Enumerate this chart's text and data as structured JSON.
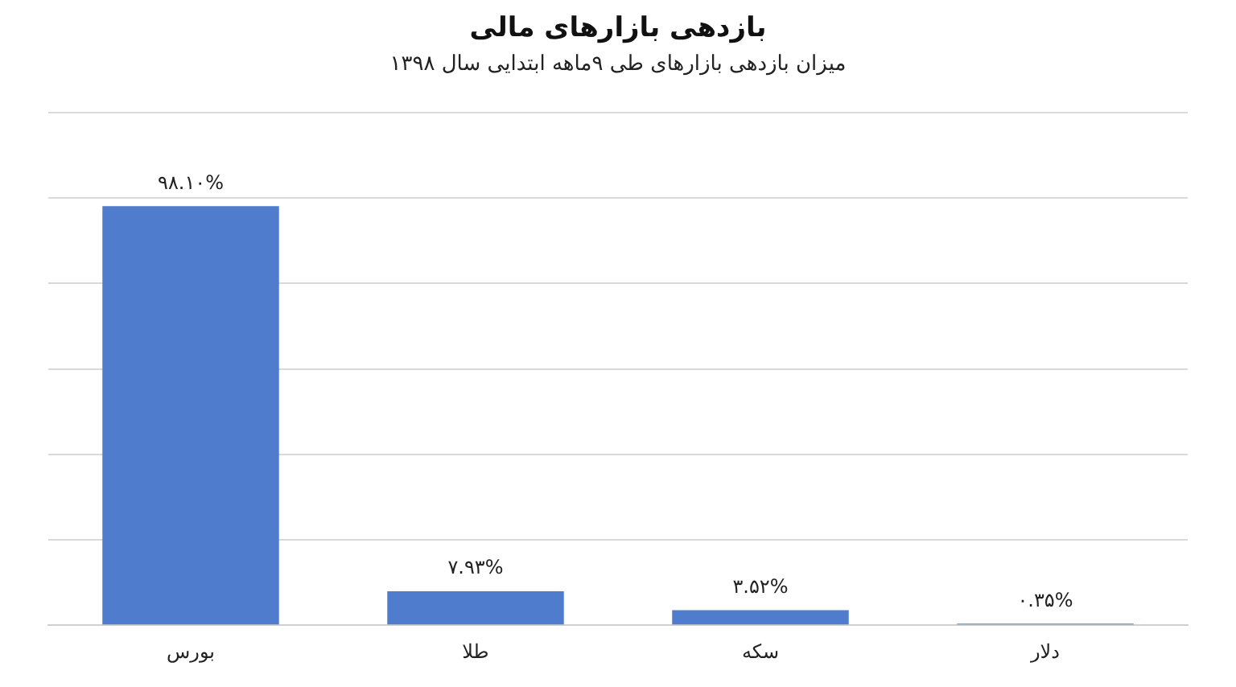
{
  "chart_data": {
    "type": "bar",
    "title": "بازدهی بازارهای مالی",
    "subtitle": "میزان بازدهی بازارهای طی ۹ماهه ابتدایی سال ۱۳۹۸",
    "categories": [
      "بورس",
      "طلا",
      "سکه",
      "دلار"
    ],
    "values": [
      98.1,
      7.93,
      3.52,
      0.35
    ],
    "value_labels": [
      "۹۸.۱۰%",
      "۷.۹۳%",
      "۳.۵۲%",
      "۰.۳۵%"
    ],
    "color": "#4f7ccc",
    "ylim": [
      0,
      120
    ],
    "yticks": [
      {
        "value": 0,
        "label": null
      },
      {
        "value": 20,
        "label": null
      },
      {
        "value": 40,
        "label": null
      },
      {
        "value": 60,
        "label": null
      },
      {
        "value": 80,
        "label": null
      },
      {
        "value": 100,
        "label": null
      },
      {
        "value": 120,
        "label": null
      }
    ],
    "grid": "y",
    "tick_labels": "x"
  }
}
